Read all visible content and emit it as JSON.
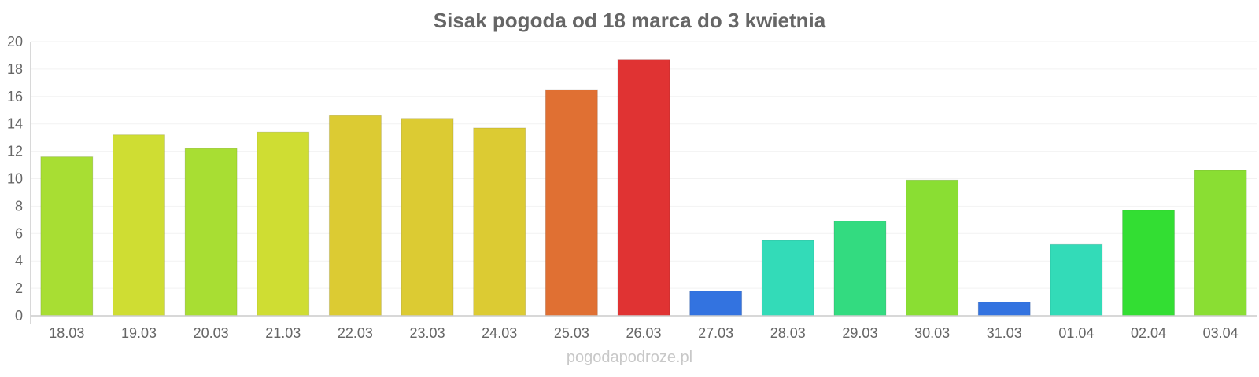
{
  "chart_data": {
    "type": "bar",
    "title": "Sisak pogoda od 18 marca do 3 kwietnia",
    "xlabel": "",
    "ylabel": "",
    "categories": [
      "18.03",
      "19.03",
      "20.03",
      "21.03",
      "22.03",
      "23.03",
      "24.03",
      "25.03",
      "26.03",
      "27.03",
      "28.03",
      "29.03",
      "30.03",
      "31.03",
      "01.04",
      "02.04",
      "03.04"
    ],
    "values": [
      11.6,
      13.2,
      12.2,
      13.4,
      14.6,
      14.4,
      13.7,
      16.5,
      18.7,
      1.8,
      5.5,
      6.9,
      9.9,
      1.0,
      5.2,
      7.7,
      10.6
    ],
    "colors": [
      "#a8de33",
      "#cfdd33",
      "#a8de33",
      "#cfdd33",
      "#dccb33",
      "#dccb33",
      "#dccb33",
      "#e07033",
      "#e03333",
      "#3373e0",
      "#33dbb8",
      "#33db80",
      "#8ade33",
      "#3373e0",
      "#33dbb8",
      "#33de33",
      "#8ade33"
    ],
    "ylim": [
      0,
      20
    ],
    "yticks": [
      0,
      2,
      4,
      6,
      8,
      10,
      12,
      14,
      16,
      18,
      20
    ],
    "grid": true,
    "legend": "none"
  },
  "watermark": "pogodapodroze.pl"
}
